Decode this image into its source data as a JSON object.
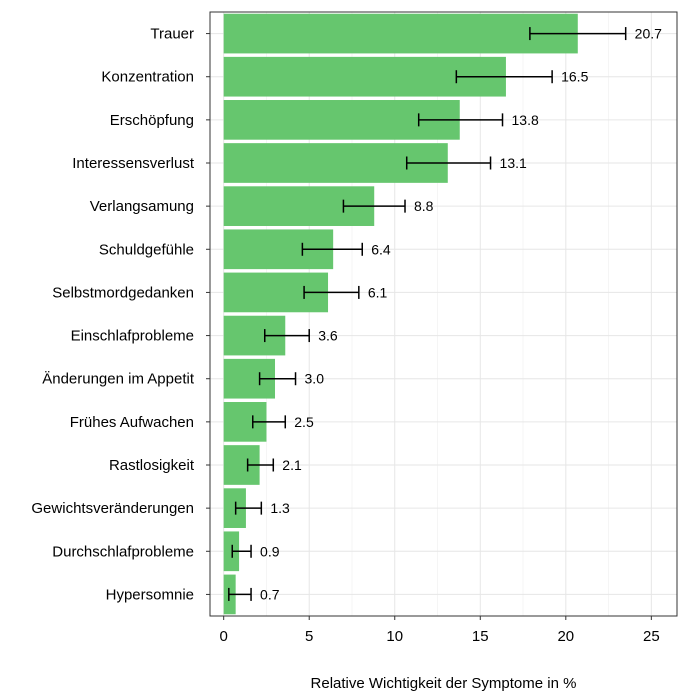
{
  "chart_data": {
    "type": "bar",
    "orientation": "horizontal",
    "xlabel": "Relative Wichtigkeit der Symptome in %",
    "ylabel": "",
    "xlim": [
      -0.8,
      26.5
    ],
    "xticks": [
      0,
      5,
      10,
      15,
      20,
      25
    ],
    "grid": true,
    "bar_color": "#66c66e",
    "categories": [
      "Trauer",
      "Konzentration",
      "Erschöpfung",
      "Interessensverlust",
      "Verlangsamung",
      "Schuldgefühle",
      "Selbstmordgedanken",
      "Einschlafprobleme",
      "Änderungen im Appetit",
      "Frühes Aufwachen",
      "Rastlosigkeit",
      "Gewichtsveränderungen",
      "Durchschlafprobleme",
      "Hypersomnie"
    ],
    "values": [
      20.7,
      16.5,
      13.8,
      13.1,
      8.8,
      6.4,
      6.1,
      3.6,
      3.0,
      2.5,
      2.1,
      1.3,
      0.9,
      0.7
    ],
    "value_labels": [
      "20.7",
      "16.5",
      "13.8",
      "13.1",
      "8.8",
      "6.4",
      "6.1",
      "3.6",
      "3.0",
      "2.5",
      "2.1",
      "1.3",
      "0.9",
      "0.7"
    ],
    "error_low": [
      17.9,
      13.6,
      11.4,
      10.7,
      7.0,
      4.6,
      4.7,
      2.4,
      2.1,
      1.7,
      1.4,
      0.7,
      0.5,
      0.3
    ],
    "error_high": [
      23.5,
      19.2,
      16.3,
      15.6,
      10.6,
      8.1,
      7.9,
      5.0,
      4.2,
      3.6,
      2.9,
      2.2,
      1.6,
      1.6
    ]
  }
}
